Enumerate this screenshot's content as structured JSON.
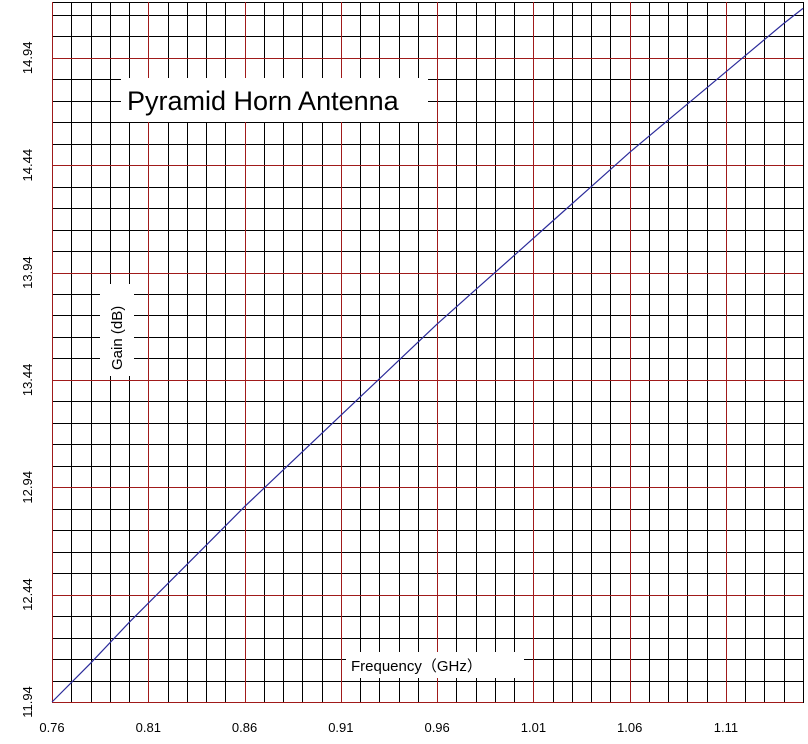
{
  "chart_data": {
    "type": "line",
    "title": "Pyramid Horn Antenna",
    "xlabel": "Frequency（GHz）",
    "ylabel": "Gain (dB)",
    "xlim": [
      0.76,
      1.15
    ],
    "ylim": [
      11.94,
      15.2
    ],
    "x_ticks": [
      "0.76",
      "0.81",
      "0.86",
      "0.91",
      "0.96",
      "1.01",
      "1.06",
      "1.11"
    ],
    "y_ticks": [
      "11.94",
      "12.44",
      "12.94",
      "13.44",
      "13.94",
      "14.44",
      "14.94"
    ],
    "grid": true,
    "legend": "none",
    "series": [
      {
        "color": "#2b2b9a",
        "x": [
          0.76,
          0.78,
          0.8,
          0.82,
          0.84,
          0.86,
          0.88,
          0.9,
          0.92,
          0.94,
          0.96,
          0.98,
          1.0,
          1.02,
          1.04,
          1.06,
          1.08,
          1.1,
          1.12,
          1.14,
          1.15
        ],
        "y": [
          11.94,
          12.12,
          12.31,
          12.49,
          12.67,
          12.85,
          13.02,
          13.19,
          13.36,
          13.53,
          13.7,
          13.86,
          14.02,
          14.18,
          14.34,
          14.5,
          14.65,
          14.8,
          14.95,
          15.1,
          15.17
        ]
      }
    ],
    "colors": {
      "major_grid": "#a01a1a",
      "minor_grid": "#000000",
      "line": "#2b2b9a"
    }
  }
}
